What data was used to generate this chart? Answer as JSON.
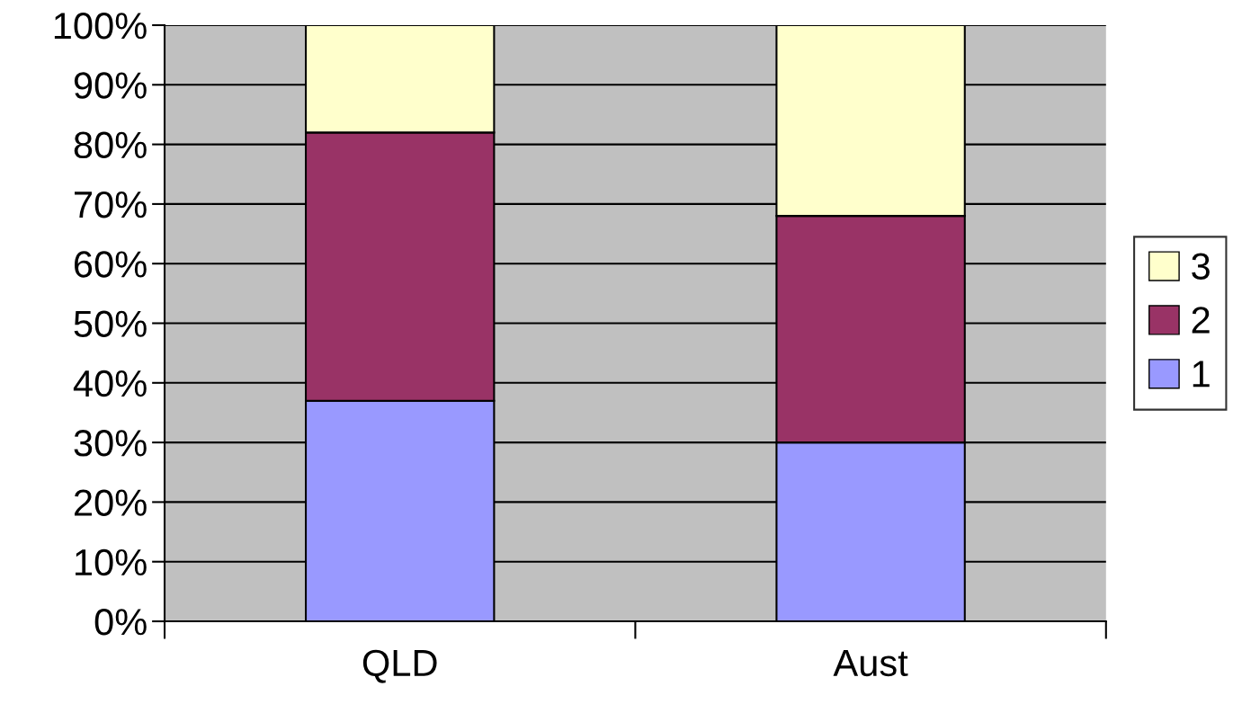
{
  "chart_data": {
    "type": "bar",
    "stacked": true,
    "categories": [
      "QLD",
      "Aust"
    ],
    "series": [
      {
        "name": "1",
        "color": "#9999ff",
        "values": [
          37,
          30
        ]
      },
      {
        "name": "2",
        "color": "#993366",
        "values": [
          45,
          38
        ]
      },
      {
        "name": "3",
        "color": "#ffffcc",
        "values": [
          18,
          32
        ]
      }
    ],
    "ylim": [
      0,
      100
    ],
    "yticks": [
      {
        "value": 0,
        "label": "0%"
      },
      {
        "value": 10,
        "label": "10%"
      },
      {
        "value": 20,
        "label": "20%"
      },
      {
        "value": 30,
        "label": "30%"
      },
      {
        "value": 40,
        "label": "40%"
      },
      {
        "value": 50,
        "label": "50%"
      },
      {
        "value": 60,
        "label": "60%"
      },
      {
        "value": 70,
        "label": "70%"
      },
      {
        "value": 80,
        "label": "80%"
      },
      {
        "value": 90,
        "label": "90%"
      },
      {
        "value": 100,
        "label": "100%"
      }
    ],
    "grid": "y",
    "legend": "right"
  }
}
